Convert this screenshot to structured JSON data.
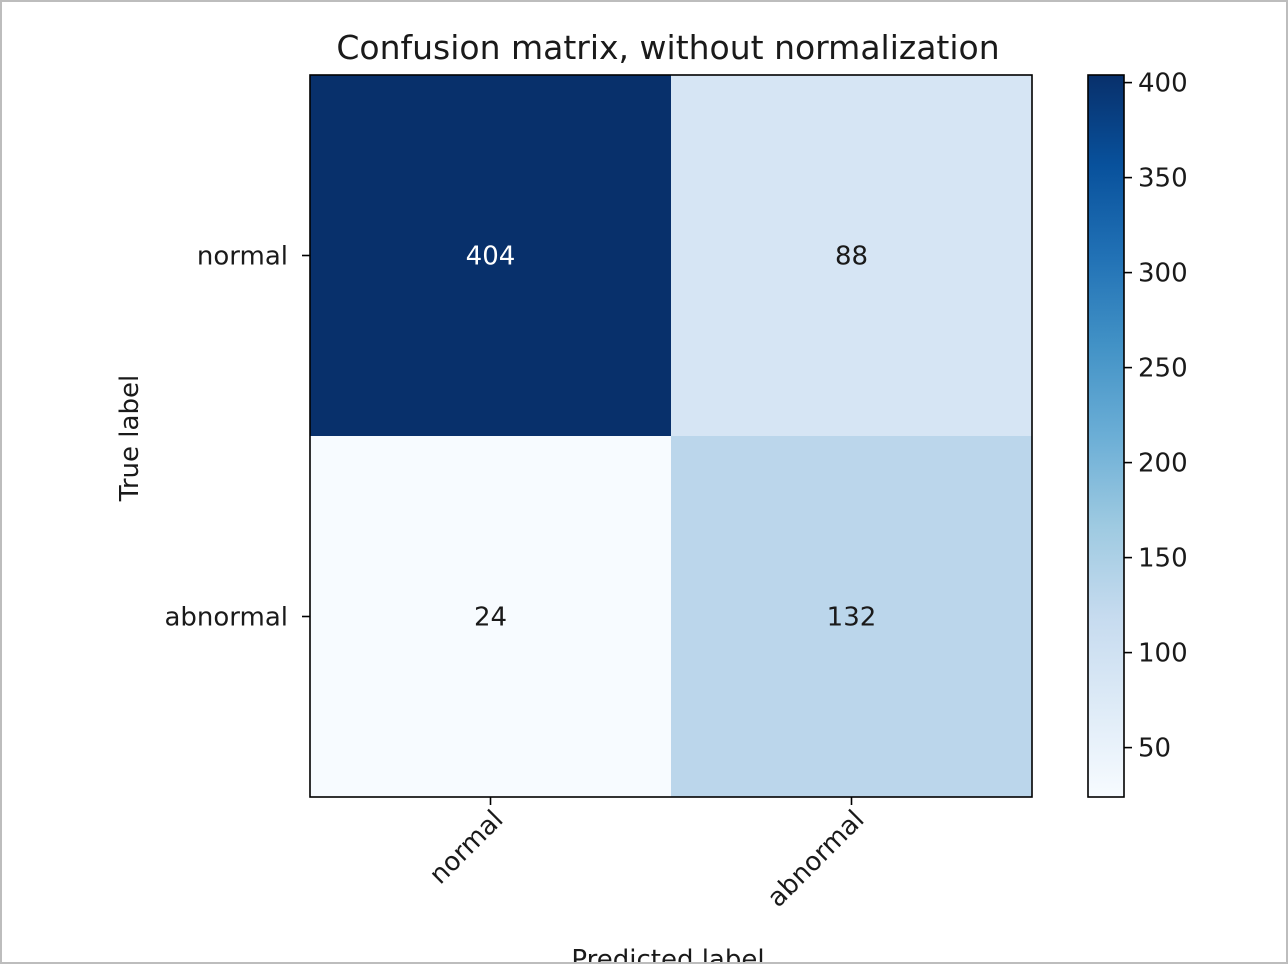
{
  "chart_data": {
    "type": "heatmap",
    "title": "Confusion matrix, without normalization",
    "xlabel": "Predicted label",
    "ylabel": "True label",
    "x_categories": [
      "normal",
      "abnormal"
    ],
    "y_categories": [
      "normal",
      "abnormal"
    ],
    "values": [
      [
        404,
        88
      ],
      [
        24,
        132
      ]
    ],
    "colormap": "Blues",
    "colorbar": {
      "min": 24,
      "max": 404,
      "ticks": [
        50,
        100,
        150,
        200,
        250,
        300,
        350,
        400
      ],
      "tick_labels": [
        "50",
        "100",
        "150",
        "200",
        "250",
        "300",
        "350",
        "400"
      ]
    },
    "grid": false,
    "legend": "colorbar-right"
  }
}
